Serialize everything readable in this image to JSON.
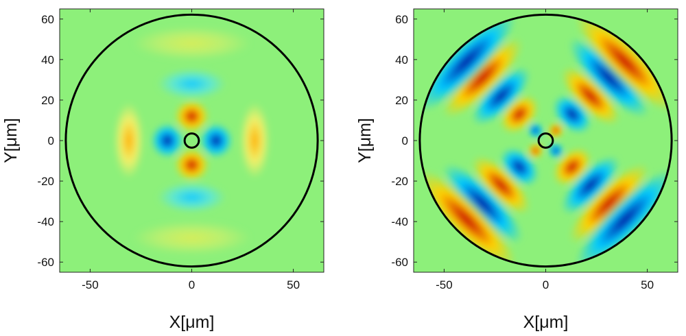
{
  "chart_data": [
    {
      "type": "heatmap",
      "title": "",
      "xlabel": "X[μm]",
      "ylabel": "Y[μm]",
      "xlim": [
        -65,
        65
      ],
      "ylim": [
        -65,
        65
      ],
      "xticks": [
        -50,
        0,
        50
      ],
      "yticks": [
        60,
        40,
        20,
        0,
        -20,
        -40,
        -60
      ],
      "outer_circle_radius": 62,
      "inner_circle_radius": 3.5,
      "colormap": "jet",
      "background_color": "#8df07a",
      "grid": false,
      "legend": "none",
      "field_lobes": [
        {
          "x": 0,
          "y": 12,
          "value": 1.0
        },
        {
          "x": 0,
          "y": -12,
          "value": 1.0
        },
        {
          "x": -12,
          "y": 0,
          "value": -1.0
        },
        {
          "x": 12,
          "y": 0,
          "value": -1.0
        },
        {
          "x": 0,
          "y": 28,
          "value": -0.55
        },
        {
          "x": 0,
          "y": -28,
          "value": -0.55
        },
        {
          "x": -31,
          "y": 0,
          "value": 0.45
        },
        {
          "x": 31,
          "y": 0,
          "value": 0.45
        },
        {
          "x": 0,
          "y": 48,
          "value": 0.18
        },
        {
          "x": 0,
          "y": -48,
          "value": 0.18
        }
      ]
    },
    {
      "type": "heatmap",
      "title": "",
      "xlabel": "X[μm]",
      "ylabel": "Y[μm]",
      "xlim": [
        -65,
        65
      ],
      "ylim": [
        -65,
        65
      ],
      "xticks": [
        -50,
        0,
        50
      ],
      "yticks": [
        60,
        40,
        20,
        0,
        -20,
        -40,
        -60
      ],
      "outer_circle_radius": 62,
      "inner_circle_radius": 3.5,
      "colormap": "jet",
      "background_color": "#8df07a",
      "grid": false,
      "legend": "none",
      "field_lobes": [
        {
          "x": 5,
          "y": 5,
          "value": 1.0
        },
        {
          "x": -5,
          "y": -5,
          "value": 1.0
        },
        {
          "x": -5,
          "y": 5,
          "value": -1.0
        },
        {
          "x": 5,
          "y": -5,
          "value": -1.0
        },
        {
          "x": 13,
          "y": 13,
          "value": -1.0
        },
        {
          "x": -13,
          "y": -13,
          "value": -1.0
        },
        {
          "x": -13,
          "y": 13,
          "value": 1.0
        },
        {
          "x": 13,
          "y": -13,
          "value": 1.0
        },
        {
          "x": 22,
          "y": 22,
          "value": 1.0
        },
        {
          "x": -22,
          "y": -22,
          "value": 1.0
        },
        {
          "x": -22,
          "y": 22,
          "value": -1.0
        },
        {
          "x": 22,
          "y": -22,
          "value": -1.0
        },
        {
          "x": 31,
          "y": 31,
          "value": -1.0
        },
        {
          "x": -31,
          "y": -31,
          "value": -1.0
        },
        {
          "x": -31,
          "y": 31,
          "value": 1.0
        },
        {
          "x": 31,
          "y": -31,
          "value": 1.0
        },
        {
          "x": 39,
          "y": 39,
          "value": 1.0
        },
        {
          "x": -39,
          "y": -39,
          "value": 1.0
        },
        {
          "x": -39,
          "y": 39,
          "value": -1.0
        },
        {
          "x": 39,
          "y": -39,
          "value": -1.0
        }
      ]
    }
  ]
}
